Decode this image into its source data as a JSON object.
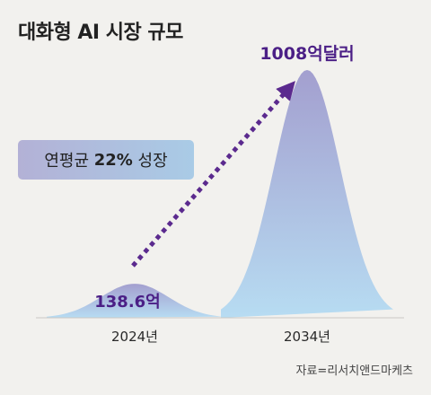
{
  "title": "대화형 AI 시장 규모",
  "annotation": {
    "prefix": "연평균 ",
    "rate": "22%",
    "suffix": " 성장"
  },
  "source": "자료=리서치앤드마케츠",
  "colors": {
    "accent": "#4b1f86",
    "arrow": "#5b2a8e",
    "curve_top": "#a39fcf",
    "curve_bottom": "#b7dcf2",
    "background": "#f2f1ee"
  },
  "chart_data": {
    "type": "area",
    "categories": [
      "2024년",
      "2034년"
    ],
    "values": [
      138.6,
      1008
    ],
    "value_labels": [
      "138.6억",
      "1008억달러"
    ],
    "xlabel": "",
    "ylabel": "",
    "grid": false,
    "legend": "none"
  }
}
